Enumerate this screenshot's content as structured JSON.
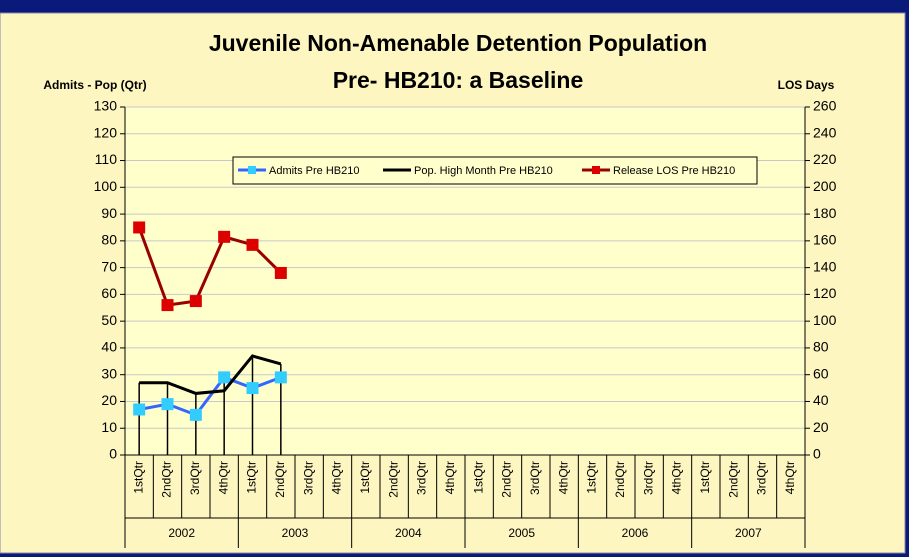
{
  "chart_data": {
    "type": "line",
    "title": [
      "Juvenile Non-Amenable Detention Population",
      "Pre- HB210: a Baseline"
    ],
    "y_label": "Admits - Pop (Qtr)",
    "y2_label": "LOS Days",
    "categories": [
      "1stQtr",
      "2ndQtr",
      "3rdQtr",
      "4thQtr",
      "1stQtr",
      "2ndQtr",
      "3rdQtr",
      "4thQtr",
      "1stQtr",
      "2ndQtr",
      "3rdQtr",
      "4thQtr",
      "1stQtr",
      "2ndQtr",
      "3rdQtr",
      "4thQtr",
      "1stQtr",
      "2ndQtr",
      "3rdQtr",
      "4thQtr",
      "1stQtr",
      "2ndQtr",
      "3rdQtr",
      "4thQtr"
    ],
    "groups": [
      "2002",
      "2003",
      "2004",
      "2005",
      "2006",
      "2007"
    ],
    "series": [
      {
        "name": "Admits Pre HB210",
        "color": "#3366ff",
        "marker_color": "#33ccff",
        "marker": "square",
        "values": [
          17,
          19,
          15,
          29,
          25,
          29,
          null,
          null,
          null,
          null,
          null,
          null,
          null,
          null,
          null,
          null,
          null,
          null,
          null,
          null,
          null,
          null,
          null,
          null
        ]
      },
      {
        "name": "Pop. High Month Pre HB210",
        "color": "#000000",
        "marker": "none",
        "values": [
          27,
          27,
          23,
          24,
          37,
          34,
          null,
          null,
          null,
          null,
          null,
          null,
          null,
          null,
          null,
          null,
          null,
          null,
          null,
          null,
          null,
          null,
          null,
          null
        ]
      },
      {
        "name": "Release LOS Pre HB210",
        "color": "#990000",
        "marker_color": "#dd0000",
        "marker": "square",
        "axis": "y2",
        "values": [
          170,
          112,
          115,
          163,
          157,
          136,
          null,
          null,
          null,
          null,
          null,
          null,
          null,
          null,
          null,
          null,
          null,
          null,
          null,
          null,
          null,
          null,
          null,
          null
        ]
      }
    ],
    "ylim": [
      0,
      130
    ],
    "yticks": [
      0,
      10,
      20,
      30,
      40,
      50,
      60,
      70,
      80,
      90,
      100,
      110,
      120,
      130
    ],
    "y2lim": [
      0,
      260
    ],
    "y2ticks": [
      0,
      20,
      40,
      60,
      80,
      100,
      120,
      140,
      160,
      180,
      200,
      220,
      240,
      260
    ],
    "grid": true,
    "drop_lines": true
  }
}
